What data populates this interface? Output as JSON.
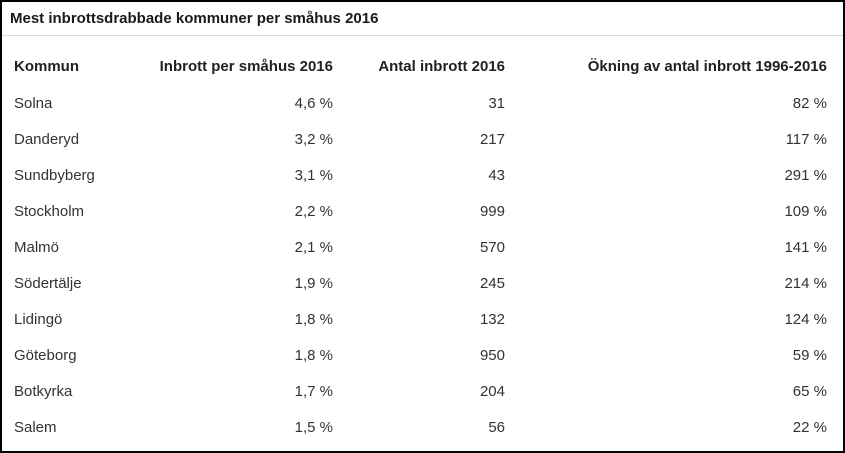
{
  "chart_data": {
    "type": "table",
    "title": "Mest inbrottsdrabbade kommuner per småhus 2016",
    "columns": [
      "Kommun",
      "Inbrott per småhus 2016",
      "Antal inbrott 2016",
      "Ökning av antal inbrott 1996-2016"
    ],
    "rows": [
      [
        "Solna",
        "4,6 %",
        "31",
        "82 %"
      ],
      [
        "Danderyd",
        "3,2 %",
        "217",
        "117 %"
      ],
      [
        "Sundbyberg",
        "3,1 %",
        "43",
        "291 %"
      ],
      [
        "Stockholm",
        "2,2 %",
        "999",
        "109 %"
      ],
      [
        "Malmö",
        "2,1 %",
        "570",
        "141 %"
      ],
      [
        "Södertälje",
        "1,9 %",
        "245",
        "214 %"
      ],
      [
        "Lidingö",
        "1,8 %",
        "132",
        "124 %"
      ],
      [
        "Göteborg",
        "1,8 %",
        "950",
        "59 %"
      ],
      [
        "Botkyrka",
        "1,7 %",
        "204",
        "65 %"
      ],
      [
        "Salem",
        "1,5 %",
        "56",
        "22 %"
      ]
    ]
  }
}
